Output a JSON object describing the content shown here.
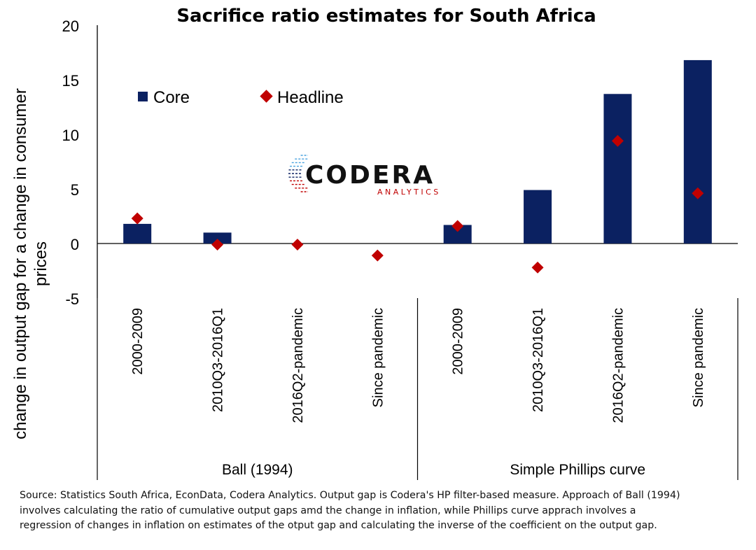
{
  "chart_data": {
    "type": "bar",
    "title": "Sacrifice ratio estimates for South Africa",
    "ylabel": "change in output gap for a change in consumer prices",
    "ylim": [
      -5,
      20
    ],
    "yticks": [
      "20",
      "15",
      "10",
      "5",
      "0",
      "-5"
    ],
    "grid": false,
    "legend_position": "top-left",
    "groups": [
      {
        "label": "Ball (1994)",
        "categories": [
          "2000-2009",
          "2010Q3-2016Q1",
          "2016Q2-pandemic",
          "Since pandemic"
        ]
      },
      {
        "label": "Simple Phillips curve",
        "categories": [
          "2000-2009",
          "2010Q3-2016Q1",
          "2016Q2-pandemic",
          "Since pandemic"
        ]
      }
    ],
    "categories": [
      "2000-2009",
      "2010Q3-2016Q1",
      "2016Q2-pandemic",
      "Since pandemic",
      "2000-2009",
      "2010Q3-2016Q1",
      "2016Q2-pandemic",
      "Since pandemic"
    ],
    "series": [
      {
        "name": "Core",
        "type": "bar",
        "color": "#0b2161",
        "values": [
          1.8,
          1.0,
          0.0,
          0.0,
          1.7,
          4.9,
          13.7,
          16.8
        ]
      },
      {
        "name": "Headline",
        "type": "marker",
        "marker": "diamond",
        "color": "#c00000",
        "values": [
          2.3,
          -0.1,
          -0.1,
          -1.1,
          1.6,
          -2.2,
          9.4,
          4.6
        ]
      }
    ]
  },
  "logo": {
    "name": "CODERA",
    "sub": "ANALYTICS",
    "colors": [
      "#c00000",
      "#0b2161",
      "#4aa3df"
    ]
  },
  "source_lines": [
    "Source: Statistics South Africa, EconData, Codera Analytics. Output gap is Codera's HP filter-based measure. Approach of Ball (1994)",
    "involves calculating the ratio of cumulative output gaps amd the change in inflation, while Phillips curve apprach involves a",
    "regression of changes in inflation on estimates of the otput gap and calculating the inverse of the coefficient on the output gap."
  ]
}
